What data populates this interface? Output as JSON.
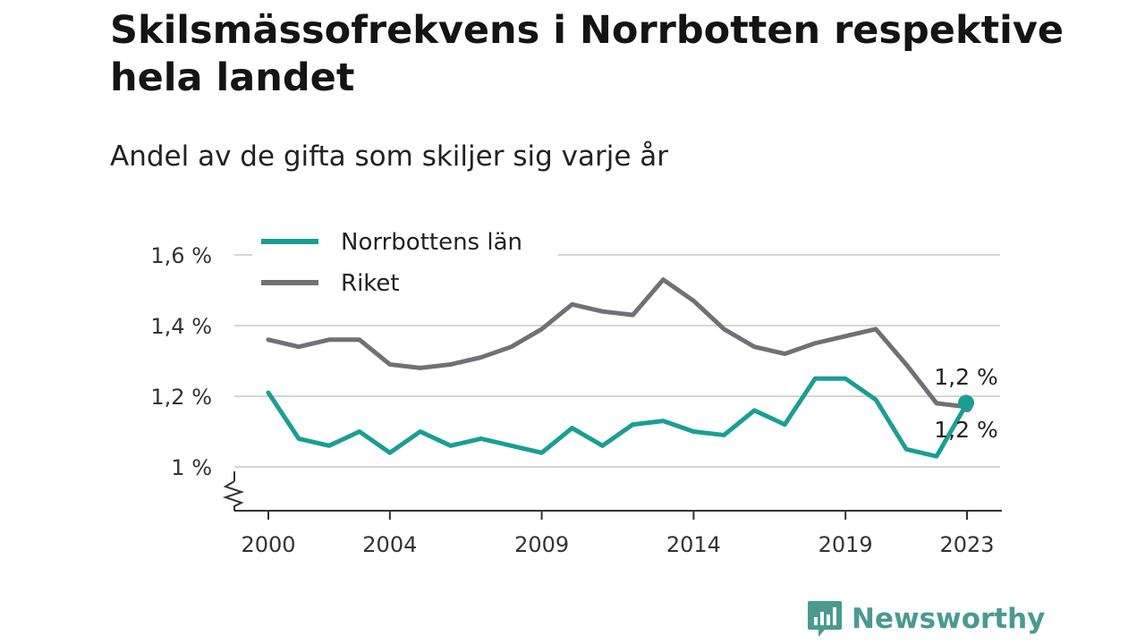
{
  "header": {
    "title": "Skilsmässofrekvens i Norrbotten respektive hela landet",
    "subtitle": "Andel av de gifta som skiljer sig varje år"
  },
  "brand": {
    "name": "Newsworthy",
    "icon": "newsworthy-logo-icon",
    "color": "#4a9a8f"
  },
  "chart_data": {
    "type": "line",
    "title": "Skilsmässofrekvens i Norrbotten respektive hela landet",
    "subtitle": "Andel av de gifta som skiljer sig varje år",
    "xlabel": "",
    "ylabel": "",
    "x": [
      2000,
      2001,
      2002,
      2003,
      2004,
      2005,
      2006,
      2007,
      2008,
      2009,
      2010,
      2011,
      2012,
      2013,
      2014,
      2015,
      2016,
      2017,
      2018,
      2019,
      2020,
      2021,
      2022,
      2023
    ],
    "x_ticks": [
      "2000",
      "2004",
      "2009",
      "2014",
      "2019",
      "2023"
    ],
    "y_ticks": [
      "1 %",
      "1,2 %",
      "1,4 %",
      "1,6 %"
    ],
    "y_tick_values": [
      1.0,
      1.2,
      1.4,
      1.6
    ],
    "ylim": [
      0.88,
      1.65
    ],
    "y_axis_break": true,
    "grid": true,
    "legend_position": "top-left",
    "series": [
      {
        "name": "Norrbottens län",
        "color": "#1a9e94",
        "values": [
          1.21,
          1.08,
          1.06,
          1.1,
          1.04,
          1.1,
          1.06,
          1.08,
          1.06,
          1.04,
          1.11,
          1.06,
          1.12,
          1.13,
          1.1,
          1.09,
          1.16,
          1.12,
          1.25,
          1.25,
          1.19,
          1.05,
          1.03,
          1.18
        ],
        "end_label": "1,2 %"
      },
      {
        "name": "Riket",
        "color": "#717077",
        "values": [
          1.36,
          1.34,
          1.36,
          1.36,
          1.29,
          1.28,
          1.29,
          1.31,
          1.34,
          1.39,
          1.46,
          1.44,
          1.43,
          1.53,
          1.47,
          1.39,
          1.34,
          1.32,
          1.35,
          1.37,
          1.39,
          1.29,
          1.18,
          1.17
        ],
        "end_label": "1,2 %"
      }
    ]
  }
}
